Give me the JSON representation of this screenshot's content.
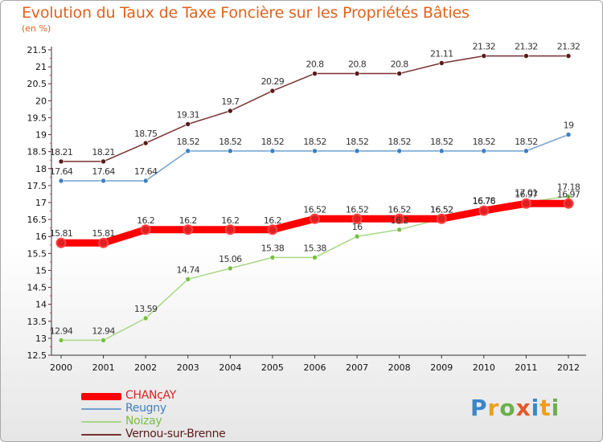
{
  "header": {
    "title": "Evolution du Taux de Taxe Foncière sur les Propriétés Bâties",
    "unit": "(en %)"
  },
  "logo": {
    "letters": [
      {
        "ch": "P",
        "color": "#3a86c8"
      },
      {
        "ch": "r",
        "color": "#e8a020"
      },
      {
        "ch": "o",
        "color": "#6ab04c"
      },
      {
        "ch": "x",
        "color": "#e05a2b"
      },
      {
        "ch": "i",
        "color": "#3a86c8"
      },
      {
        "ch": "t",
        "color": "#e8a020"
      },
      {
        "ch": "i",
        "color": "#6ab04c"
      }
    ]
  },
  "chart_data": {
    "type": "line",
    "x": [
      "2000",
      "2001",
      "2002",
      "2003",
      "2004",
      "2005",
      "2006",
      "2007",
      "2008",
      "2009",
      "2010",
      "2011",
      "2012"
    ],
    "ylim": [
      12.5,
      21.5
    ],
    "yticks": [
      "12.5",
      "13",
      "13.5",
      "14",
      "14.5",
      "15",
      "15.5",
      "16",
      "16.5",
      "17",
      "17.5",
      "18",
      "18.5",
      "19",
      "19.5",
      "20",
      "20.5",
      "21",
      "21.5"
    ],
    "grid": false,
    "legend_position": "bottom-left",
    "series": [
      {
        "name": "CHANçAY",
        "color": "#ff0000",
        "marker": "#e02020",
        "width": 9,
        "values": [
          15.81,
          15.81,
          16.2,
          16.2,
          16.2,
          16.2,
          16.52,
          16.52,
          16.52,
          16.52,
          16.76,
          16.97,
          16.97
        ],
        "labels": [
          "15.81",
          "15.81",
          "16.2",
          "16.2",
          "16.2",
          "16.2",
          "16.52",
          "16.52",
          "16.52",
          "16.52",
          "16.76",
          "16.97",
          "16.97"
        ]
      },
      {
        "name": "Reugny",
        "color": "#6fa0d0",
        "marker": "#3f7fc0",
        "width": 1.5,
        "values": [
          17.64,
          17.64,
          17.64,
          18.52,
          18.52,
          18.52,
          18.52,
          18.52,
          18.52,
          18.52,
          18.52,
          18.52,
          19
        ],
        "labels": [
          "17.64",
          "17.64",
          "17.64",
          "18.52",
          "18.52",
          "18.52",
          "18.52",
          "18.52",
          "18.52",
          "18.52",
          "18.52",
          "18.52",
          "19"
        ]
      },
      {
        "name": "Noizay",
        "color": "#a8d888",
        "marker": "#78c040",
        "width": 1.5,
        "values": [
          12.94,
          12.94,
          13.59,
          14.74,
          15.06,
          15.38,
          15.38,
          16,
          16.2,
          16.52,
          16.78,
          17.01,
          17.18
        ],
        "labels": [
          "12.94",
          "12.94",
          "13.59",
          "14.74",
          "15.06",
          "15.38",
          "15.38",
          "16",
          "16.2",
          "16.52",
          "16.78",
          "17.01",
          "17.18"
        ]
      },
      {
        "name": "Vernou-sur-Brenne",
        "color": "#7a3030",
        "marker": "#5a1a1a",
        "width": 1.5,
        "values": [
          18.21,
          18.21,
          18.75,
          19.31,
          19.7,
          20.29,
          20.8,
          20.8,
          20.8,
          21.11,
          21.32,
          21.32,
          21.32
        ],
        "labels": [
          "18.21",
          "18.21",
          "18.75",
          "19.31",
          "19.7",
          "20.29",
          "20.8",
          "20.8",
          "20.8",
          "21.11",
          "21.32",
          "21.32",
          "21.32"
        ]
      }
    ]
  }
}
